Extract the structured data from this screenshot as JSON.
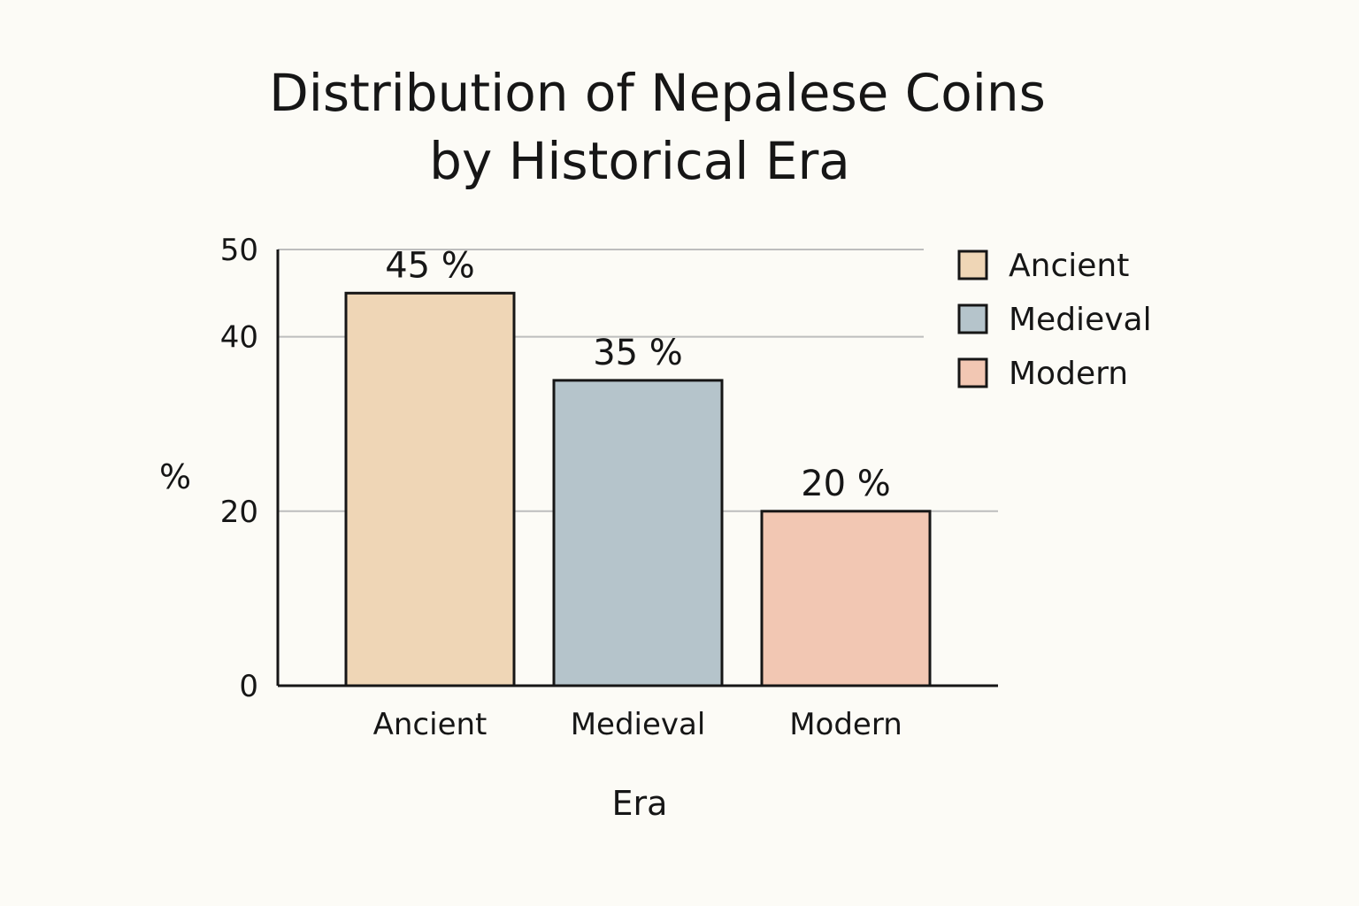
{
  "chart_data": {
    "type": "bar",
    "title": "Distribution of Nepalese Coins by Historical Era",
    "title_lines": [
      "Distribution of Nepalese Coins",
      "by Historical Era"
    ],
    "xlabel": "Era",
    "ylabel": "%",
    "categories": [
      "Ancient",
      "Medieval",
      "Modern"
    ],
    "values": [
      45,
      35,
      20
    ],
    "value_labels": [
      "45 %",
      "35 %",
      "20 %"
    ],
    "colors": [
      "#efd6b6",
      "#b5c4cb",
      "#f2c7b3"
    ],
    "ylim": [
      0,
      50
    ],
    "yticks": [
      0,
      20,
      40,
      50
    ],
    "ytick_labels": [
      "0",
      "20",
      "40",
      "50"
    ],
    "grid": true,
    "legend": {
      "position": "top-right",
      "entries": [
        "Ancient",
        "Medieval",
        "Modern"
      ]
    }
  }
}
